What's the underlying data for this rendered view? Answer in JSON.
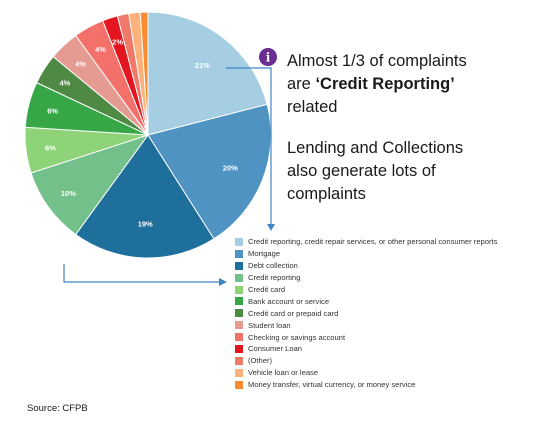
{
  "callout_top": {
    "line1": "Almost 1/3 of complaints",
    "line2_pre": "are ",
    "line2_bold": "‘Credit Reporting’",
    "line3": "related"
  },
  "callout_bottom": {
    "line1": "Lending and Collections",
    "line2": "also generate lots of",
    "line3": "complaints"
  },
  "info_icon": {
    "glyph": "i",
    "color": "#6a2c91",
    "icon": "info-icon"
  },
  "arrow_color": "#3f86c4",
  "source": "Source: CFPB",
  "chart_data": {
    "type": "pie",
    "start_angle_deg": 0,
    "direction": "clockwise",
    "slices": [
      {
        "name": "Credit reporting, credit repair services, or other personal consumer reports",
        "value": 21,
        "label": "21%",
        "color": "#a6cee3"
      },
      {
        "name": "Mortgage",
        "value": 20,
        "label": "20%",
        "color": "#4f93c3"
      },
      {
        "name": "Debt collection",
        "value": 19,
        "label": "19%",
        "color": "#1f6f9c"
      },
      {
        "name": "Credit reporting",
        "value": 10,
        "label": "10%",
        "color": "#73c08a"
      },
      {
        "name": "Credit card",
        "value": 6,
        "label": "6%",
        "color": "#8fd379"
      },
      {
        "name": "Bank account or service",
        "value": 6,
        "label": "6%",
        "color": "#36a647"
      },
      {
        "name": "Credit card or prepaid card",
        "value": 4,
        "label": "4%",
        "color": "#4f8a45"
      },
      {
        "name": "Student loan",
        "value": 4,
        "label": "4%",
        "color": "#e59b92"
      },
      {
        "name": "Checking or savings account",
        "value": 4,
        "label": "4%",
        "color": "#f4706b"
      },
      {
        "name": "Consumer Loan",
        "value": 2,
        "label": "2%",
        "color": "#e3151f"
      },
      {
        "name": "(Other)",
        "value": 1.5,
        "label": "",
        "color": "#ef7a6a"
      },
      {
        "name": "Vehicle loan or lease",
        "value": 1.5,
        "label": "",
        "color": "#fcb27a"
      },
      {
        "name": "Money transfer, virtual currency, or money service",
        "value": 1,
        "label": "",
        "color": "#f88b2f"
      }
    ]
  }
}
